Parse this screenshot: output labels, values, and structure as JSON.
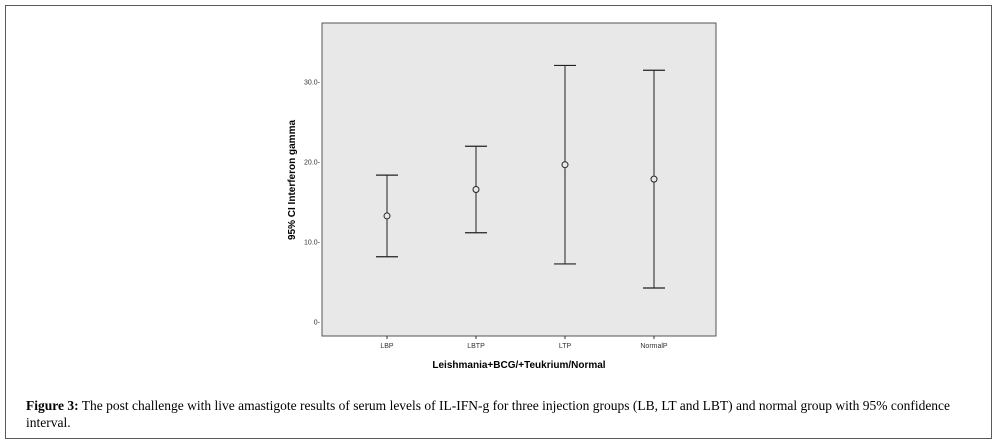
{
  "chart_data": {
    "type": "errorbar",
    "xlabel": "Leishmania+BCG/+Teukrium/Normal",
    "ylabel": "95% CI Interferon gamma",
    "categories": [
      "LBP",
      "LBTP",
      "LTP",
      "NormalP"
    ],
    "series": [
      {
        "mean": [
          13.2,
          16.5,
          19.6,
          17.8
        ],
        "lower": [
          8.1,
          11.1,
          7.2,
          4.2
        ],
        "upper": [
          18.3,
          21.9,
          32.0,
          31.4
        ]
      }
    ],
    "ylim": [
      -1.8,
      37.3
    ],
    "yticks": [
      0,
      10,
      20,
      30
    ],
    "ytick_labels": [
      "0-",
      "10.0-",
      "20.0-",
      "30.0-"
    ],
    "grid": false,
    "plot_background": "#e8e8e8"
  },
  "caption": {
    "label": "Figure 3:",
    "text": "The post challenge with live amastigote results of serum levels of IL-IFN-g for three injection groups (LB, LT and LBT) and normal group with 95% confidence interval."
  }
}
